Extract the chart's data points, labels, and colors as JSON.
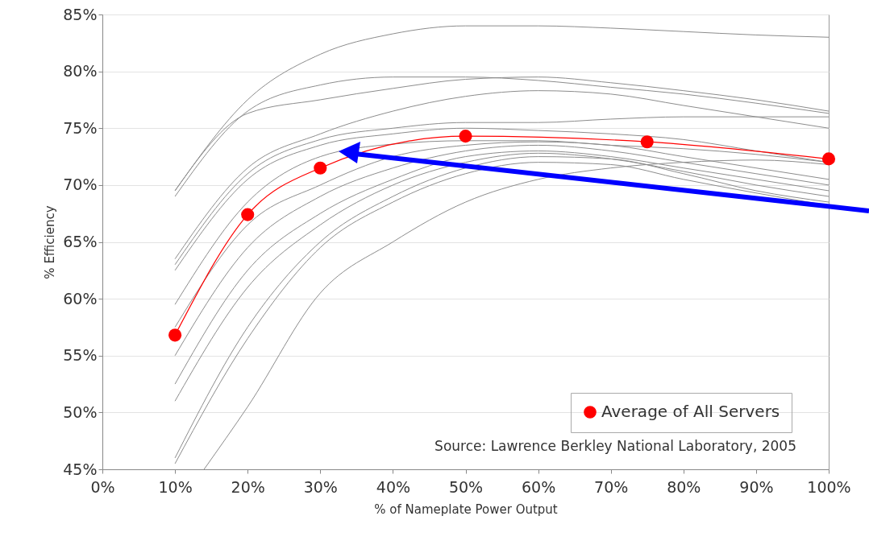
{
  "chart_data": {
    "type": "line",
    "xlabel": "% of Nameplate Power Output",
    "ylabel": "% Efficiency",
    "x": [
      10,
      20,
      30,
      40,
      50,
      60,
      70,
      80,
      90,
      100
    ],
    "series": [
      {
        "color": "#8c8c8c",
        "values": [
          69.5,
          77.5,
          81.5,
          83.3,
          84,
          84,
          83.8,
          83.5,
          83.2,
          83
        ]
      },
      {
        "color": "#8c8c8c",
        "values": [
          69,
          76.5,
          78.8,
          79.5,
          79.5,
          79.2,
          78.6,
          78,
          77.2,
          76.3
        ]
      },
      {
        "color": "#8c8c8c",
        "values": [
          69.5,
          76.3,
          77.5,
          78.5,
          79.3,
          79.5,
          79,
          78.3,
          77.5,
          76.5
        ]
      },
      {
        "color": "#8c8c8c",
        "values": [
          63.5,
          71.5,
          74.5,
          76.5,
          77.8,
          78.3,
          78,
          77,
          76,
          75
        ]
      },
      {
        "color": "#8c8c8c",
        "values": [
          63,
          71,
          74,
          75,
          75.5,
          75.5,
          75.8,
          76,
          76,
          76
        ]
      },
      {
        "color": "#8c8c8c",
        "values": [
          62.5,
          70.5,
          73.5,
          74.5,
          75,
          74.8,
          74.5,
          74,
          73,
          72
        ]
      },
      {
        "color": "#8c8c8c",
        "values": [
          59.5,
          68.5,
          72.5,
          73.6,
          73.9,
          73.9,
          73.5,
          73.2,
          72.7,
          72
        ]
      },
      {
        "color": "#8c8c8c",
        "values": [
          57.5,
          66.5,
          70,
          72.5,
          73.5,
          73.8,
          73.5,
          72.5,
          71.5,
          70.5
        ]
      },
      {
        "color": "#8c8c8c",
        "values": [
          55,
          64.5,
          69,
          71.5,
          73,
          73.5,
          73,
          72,
          71,
          70
        ]
      },
      {
        "color": "#8c8c8c",
        "values": [
          52.5,
          62.5,
          67.5,
          70.5,
          72.5,
          73,
          72.5,
          71.5,
          70.5,
          69.5
        ]
      },
      {
        "color": "#8c8c8c",
        "values": [
          51,
          61,
          66.5,
          70,
          72,
          72.8,
          72.3,
          71.2,
          70,
          69
        ]
      },
      {
        "color": "#8c8c8c",
        "values": [
          46,
          57.5,
          65,
          69,
          71.5,
          72.5,
          72.3,
          71,
          69.5,
          68.5
        ]
      },
      {
        "color": "#8c8c8c",
        "values": [
          45.5,
          56.5,
          64.5,
          68.5,
          71,
          72,
          71.8,
          70.5,
          69.3,
          68.2
        ]
      },
      {
        "color": "#8c8c8c",
        "x": [
          14,
          20,
          30,
          40,
          50,
          60,
          70,
          80,
          90,
          100
        ],
        "values": [
          45,
          50.5,
          60.5,
          65,
          68.5,
          70.5,
          71.5,
          72,
          72.2,
          71.8
        ]
      },
      {
        "name": "Average of All Servers",
        "color": "#ff0000",
        "marker": "circle",
        "x": [
          10,
          20,
          30,
          50,
          75,
          100
        ],
        "values": [
          56.8,
          67.4,
          71.5,
          74.3,
          73.8,
          72.3
        ]
      }
    ],
    "xlim": [
      0,
      100
    ],
    "xticks": [
      {
        "value": 0,
        "label": "0%"
      },
      {
        "value": 10,
        "label": "10%"
      },
      {
        "value": 20,
        "label": "20%"
      },
      {
        "value": 30,
        "label": "30%"
      },
      {
        "value": 40,
        "label": "40%"
      },
      {
        "value": 50,
        "label": "50%"
      },
      {
        "value": 60,
        "label": "60%"
      },
      {
        "value": 70,
        "label": "70%"
      },
      {
        "value": 80,
        "label": "80%"
      },
      {
        "value": 90,
        "label": "90%"
      },
      {
        "value": 100,
        "label": "100%"
      }
    ],
    "ylim": [
      45,
      85
    ],
    "yticks": [
      {
        "value": 45,
        "label": "45%"
      },
      {
        "value": 50,
        "label": "50%"
      },
      {
        "value": 55,
        "label": "55%"
      },
      {
        "value": 60,
        "label": "60%"
      },
      {
        "value": 65,
        "label": "65%"
      },
      {
        "value": 70,
        "label": "70%"
      },
      {
        "value": 75,
        "label": "75%"
      },
      {
        "value": 80,
        "label": "80%"
      },
      {
        "value": 85,
        "label": "85%"
      }
    ],
    "grid": "y",
    "legend": "bottom right",
    "line_style": "solid",
    "annotations": [
      "Source: Lawrence Berkley National Laboratory, 2005"
    ]
  }
}
